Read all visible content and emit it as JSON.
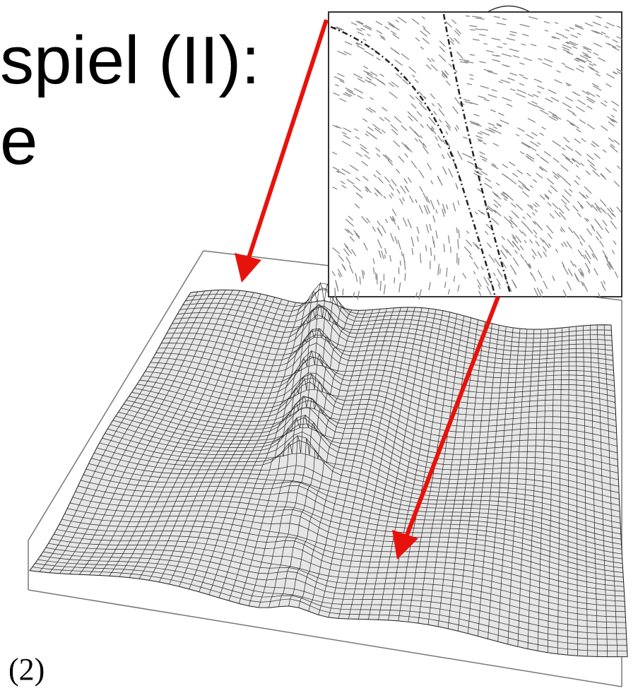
{
  "slide": {
    "title_lines": [
      "spiel (II):",
      "e"
    ],
    "figure_label": "(2)"
  }
}
